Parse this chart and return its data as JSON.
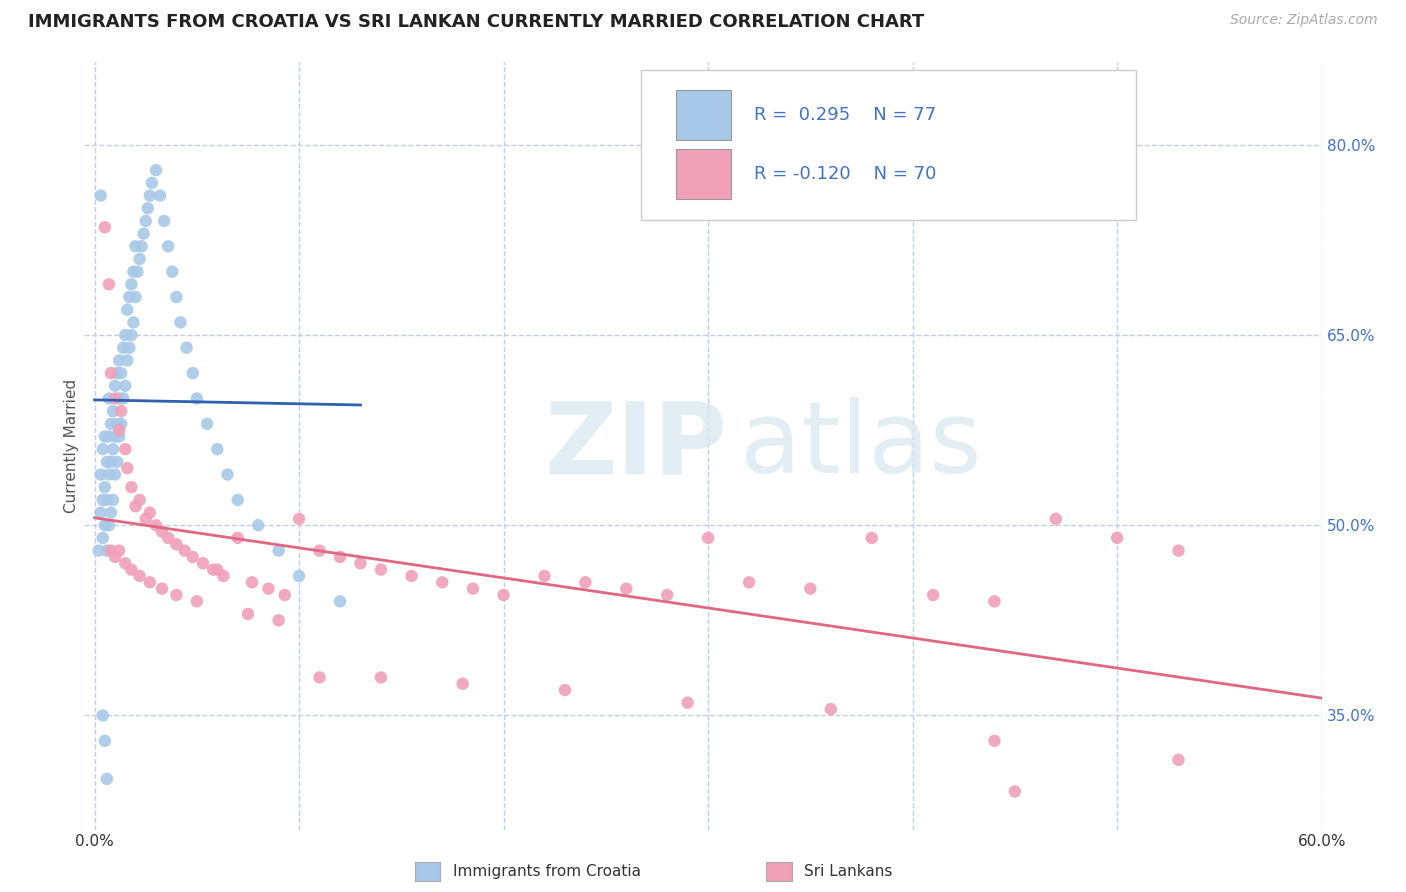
{
  "title": "IMMIGRANTS FROM CROATIA VS SRI LANKAN CURRENTLY MARRIED CORRELATION CHART",
  "source_text": "Source: ZipAtlas.com",
  "ylabel": "Currently Married",
  "xlim": [
    -0.005,
    0.6
  ],
  "ylim": [
    0.26,
    0.865
  ],
  "yticks_right": [
    0.35,
    0.5,
    0.65,
    0.8
  ],
  "ytick_right_labels": [
    "35.0%",
    "50.0%",
    "65.0%",
    "80.0%"
  ],
  "blue_R": 0.295,
  "blue_N": 77,
  "pink_R": -0.12,
  "pink_N": 70,
  "blue_color": "#a8c8e8",
  "blue_line_color": "#3060b0",
  "pink_color": "#f0a0b8",
  "pink_line_color": "#e06880",
  "legend_label_blue": "Immigrants from Croatia",
  "legend_label_pink": "Sri Lankans",
  "watermark_zip": "ZIP",
  "watermark_atlas": "atlas",
  "background_color": "#ffffff",
  "grid_color": "#c0d0e0",
  "blue_x": [
    0.002,
    0.003,
    0.003,
    0.004,
    0.004,
    0.004,
    0.005,
    0.005,
    0.005,
    0.006,
    0.006,
    0.006,
    0.007,
    0.007,
    0.007,
    0.007,
    0.008,
    0.008,
    0.008,
    0.009,
    0.009,
    0.009,
    0.01,
    0.01,
    0.01,
    0.011,
    0.011,
    0.011,
    0.012,
    0.012,
    0.012,
    0.013,
    0.013,
    0.014,
    0.014,
    0.015,
    0.015,
    0.016,
    0.016,
    0.017,
    0.017,
    0.018,
    0.018,
    0.019,
    0.019,
    0.02,
    0.02,
    0.021,
    0.022,
    0.023,
    0.024,
    0.025,
    0.026,
    0.027,
    0.028,
    0.03,
    0.032,
    0.034,
    0.036,
    0.038,
    0.04,
    0.042,
    0.045,
    0.048,
    0.05,
    0.055,
    0.06,
    0.065,
    0.07,
    0.08,
    0.09,
    0.1,
    0.12,
    0.003,
    0.004,
    0.005,
    0.006
  ],
  "blue_y": [
    0.48,
    0.51,
    0.54,
    0.49,
    0.52,
    0.56,
    0.5,
    0.53,
    0.57,
    0.48,
    0.52,
    0.55,
    0.5,
    0.54,
    0.57,
    0.6,
    0.51,
    0.55,
    0.58,
    0.52,
    0.56,
    0.59,
    0.54,
    0.57,
    0.61,
    0.55,
    0.58,
    0.62,
    0.57,
    0.6,
    0.63,
    0.58,
    0.62,
    0.6,
    0.64,
    0.61,
    0.65,
    0.63,
    0.67,
    0.64,
    0.68,
    0.65,
    0.69,
    0.66,
    0.7,
    0.68,
    0.72,
    0.7,
    0.71,
    0.72,
    0.73,
    0.74,
    0.75,
    0.76,
    0.77,
    0.78,
    0.76,
    0.74,
    0.72,
    0.7,
    0.68,
    0.66,
    0.64,
    0.62,
    0.6,
    0.58,
    0.56,
    0.54,
    0.52,
    0.5,
    0.48,
    0.46,
    0.44,
    0.76,
    0.35,
    0.33,
    0.3
  ],
  "pink_x": [
    0.005,
    0.007,
    0.008,
    0.01,
    0.012,
    0.013,
    0.015,
    0.016,
    0.018,
    0.02,
    0.022,
    0.025,
    0.027,
    0.03,
    0.033,
    0.036,
    0.04,
    0.044,
    0.048,
    0.053,
    0.058,
    0.063,
    0.07,
    0.077,
    0.085,
    0.093,
    0.1,
    0.11,
    0.12,
    0.13,
    0.14,
    0.155,
    0.17,
    0.185,
    0.2,
    0.22,
    0.24,
    0.26,
    0.28,
    0.3,
    0.32,
    0.35,
    0.38,
    0.41,
    0.44,
    0.47,
    0.5,
    0.53,
    0.008,
    0.01,
    0.012,
    0.015,
    0.018,
    0.022,
    0.027,
    0.033,
    0.04,
    0.05,
    0.06,
    0.075,
    0.09,
    0.11,
    0.14,
    0.18,
    0.23,
    0.29,
    0.36,
    0.44,
    0.45,
    0.53
  ],
  "pink_y": [
    0.735,
    0.69,
    0.62,
    0.6,
    0.575,
    0.59,
    0.56,
    0.545,
    0.53,
    0.515,
    0.52,
    0.505,
    0.51,
    0.5,
    0.495,
    0.49,
    0.485,
    0.48,
    0.475,
    0.47,
    0.465,
    0.46,
    0.49,
    0.455,
    0.45,
    0.445,
    0.505,
    0.48,
    0.475,
    0.47,
    0.465,
    0.46,
    0.455,
    0.45,
    0.445,
    0.46,
    0.455,
    0.45,
    0.445,
    0.49,
    0.455,
    0.45,
    0.49,
    0.445,
    0.44,
    0.505,
    0.49,
    0.48,
    0.48,
    0.475,
    0.48,
    0.47,
    0.465,
    0.46,
    0.455,
    0.45,
    0.445,
    0.44,
    0.465,
    0.43,
    0.425,
    0.38,
    0.38,
    0.375,
    0.37,
    0.36,
    0.355,
    0.33,
    0.29,
    0.315
  ]
}
